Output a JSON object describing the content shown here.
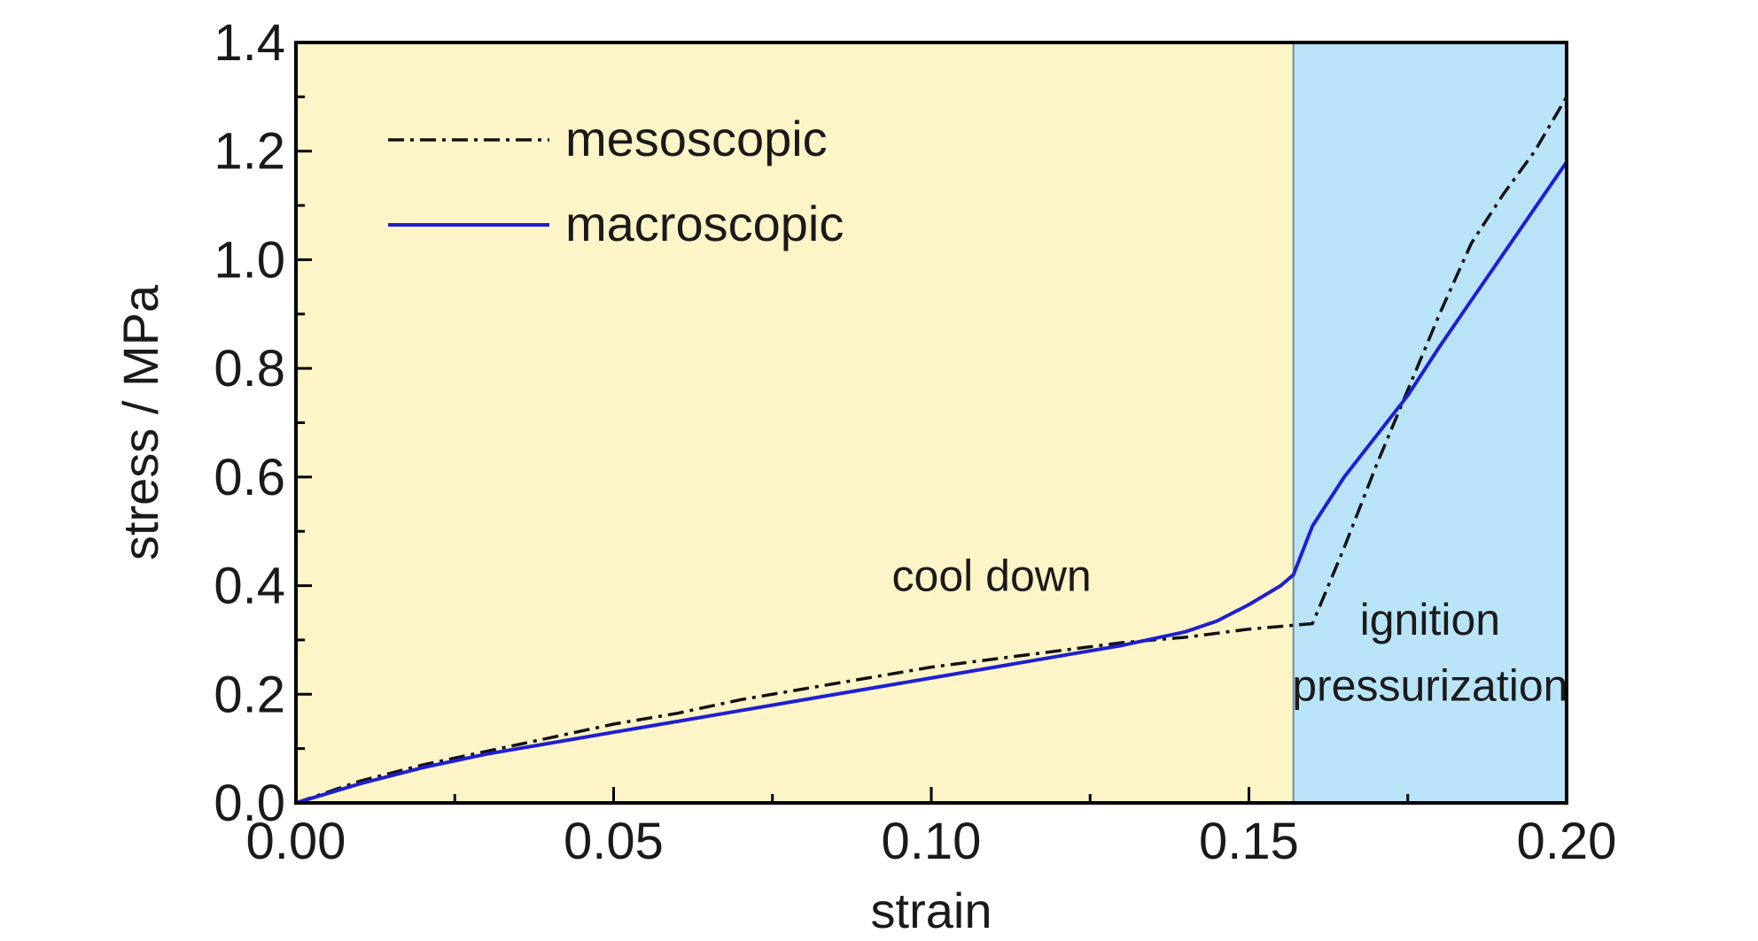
{
  "chart_data": {
    "type": "line",
    "title": "",
    "xlabel": "strain",
    "ylabel": "stress / MPa",
    "xlim": [
      0.0,
      0.2
    ],
    "ylim": [
      0.0,
      1.4
    ],
    "grid": false,
    "legend_position": "top-left",
    "xticks": [
      "0.00",
      "0.05",
      "0.10",
      "0.15",
      "0.20"
    ],
    "yticks": [
      "0.0",
      "0.2",
      "0.4",
      "0.6",
      "0.8",
      "1.0",
      "1.2",
      "1.4"
    ],
    "regions": [
      {
        "label": "cool down",
        "lines": [
          "cool down"
        ],
        "x_range": [
          0.0,
          0.157
        ],
        "color": "#fdf5c7"
      },
      {
        "label": "ignition pressurization",
        "lines": [
          "ignition",
          "pressurization"
        ],
        "x_range": [
          0.157,
          0.2
        ],
        "color": "#b9e4f8"
      }
    ],
    "series": [
      {
        "name": "mesoscopic",
        "style": "dash-dot",
        "color": "#111111",
        "x": [
          0.0,
          0.01,
          0.02,
          0.03,
          0.04,
          0.05,
          0.06,
          0.07,
          0.08,
          0.09,
          0.1,
          0.11,
          0.12,
          0.13,
          0.14,
          0.15,
          0.16,
          0.165,
          0.17,
          0.175,
          0.18,
          0.185,
          0.19,
          0.195,
          0.2
        ],
        "y": [
          0.0,
          0.04,
          0.07,
          0.095,
          0.12,
          0.145,
          0.165,
          0.19,
          0.21,
          0.23,
          0.25,
          0.265,
          0.28,
          0.295,
          0.305,
          0.32,
          0.33,
          0.47,
          0.62,
          0.76,
          0.9,
          1.03,
          1.12,
          1.2,
          1.3
        ]
      },
      {
        "name": "macroscopic",
        "style": "solid",
        "color": "#1f1fd2",
        "x": [
          0.0,
          0.01,
          0.02,
          0.03,
          0.04,
          0.05,
          0.06,
          0.07,
          0.08,
          0.09,
          0.1,
          0.11,
          0.12,
          0.13,
          0.14,
          0.145,
          0.15,
          0.155,
          0.157,
          0.16,
          0.165,
          0.17,
          0.175,
          0.18,
          0.185,
          0.19,
          0.195,
          0.2
        ],
        "y": [
          0.0,
          0.035,
          0.065,
          0.09,
          0.11,
          0.13,
          0.15,
          0.17,
          0.19,
          0.21,
          0.23,
          0.25,
          0.27,
          0.29,
          0.315,
          0.335,
          0.365,
          0.4,
          0.42,
          0.51,
          0.6,
          0.675,
          0.75,
          0.84,
          0.925,
          1.01,
          1.095,
          1.18
        ]
      }
    ]
  }
}
